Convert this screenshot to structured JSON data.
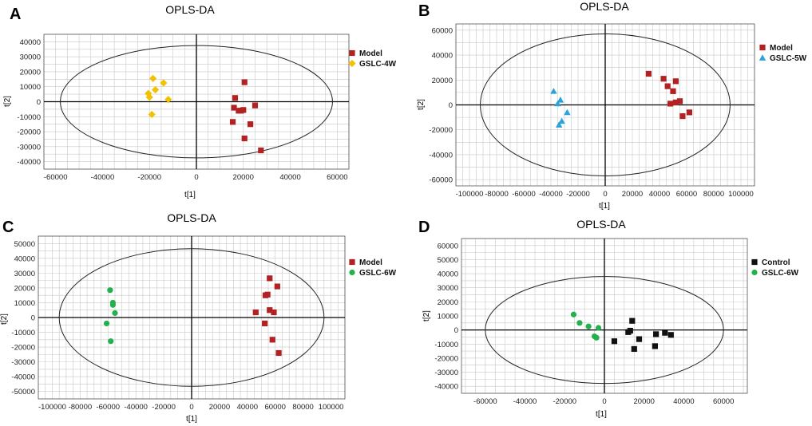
{
  "figure_labels": [
    "A",
    "B",
    "C",
    "D"
  ],
  "chart_data": [
    {
      "type": "scatter",
      "panel_label": "A",
      "title": "OPLS-DA",
      "xlabel": "t[1]",
      "ylabel": "t[2]",
      "xlim": [
        -65000,
        65000
      ],
      "ylim": [
        -45000,
        45000
      ],
      "xticks": [
        -60000,
        -40000,
        -20000,
        0,
        20000,
        40000,
        60000
      ],
      "yticks": [
        -40000,
        -30000,
        -20000,
        -10000,
        0,
        10000,
        20000,
        30000,
        40000
      ],
      "grid": true,
      "ellipse": {
        "rx": 58000,
        "ry": 37500
      },
      "legend_position": "right",
      "series": [
        {
          "name": "Model",
          "marker": "square",
          "color": "#b22222",
          "x": [
            20500,
            16500,
            16000,
            18000,
            20000,
            25000,
            15500,
            23000,
            20500,
            27500,
            19000
          ],
          "y": [
            13000,
            2500,
            -4000,
            -6000,
            -5500,
            -2500,
            -13500,
            -15000,
            -24500,
            -32500,
            -6000
          ]
        },
        {
          "name": "GSLC-4W",
          "marker": "diamond",
          "color": "#f2c200",
          "x": [
            -18500,
            -14000,
            -17500,
            -20000,
            -20500,
            -12000,
            -19000
          ],
          "y": [
            15500,
            12500,
            8000,
            3000,
            5500,
            1500,
            -8500
          ]
        }
      ]
    },
    {
      "type": "scatter",
      "panel_label": "B",
      "title": "OPLS-DA",
      "xlabel": "t[1]",
      "ylabel": "t[2]",
      "xlim": [
        -110000,
        110000
      ],
      "ylim": [
        -65000,
        65000
      ],
      "xticks": [
        -100000,
        -80000,
        -60000,
        -40000,
        -20000,
        0,
        20000,
        40000,
        60000,
        80000,
        100000
      ],
      "yticks": [
        -60000,
        -40000,
        -20000,
        0,
        20000,
        40000,
        60000
      ],
      "grid": true,
      "ellipse": {
        "rx": 92000,
        "ry": 57000
      },
      "legend_position": "right",
      "series": [
        {
          "name": "Model",
          "marker": "square",
          "color": "#b22222",
          "x": [
            32000,
            43000,
            46000,
            52000,
            50000,
            48000,
            52000,
            55000,
            57000,
            62000
          ],
          "y": [
            25000,
            21000,
            15000,
            19000,
            11000,
            1000,
            2000,
            3000,
            -9000,
            -6000
          ]
        },
        {
          "name": "GSLC-5W",
          "marker": "triangle",
          "color": "#29a3d9",
          "x": [
            -38000,
            -33000,
            -35000,
            -28000,
            -32000,
            -34000
          ],
          "y": [
            11000,
            4000,
            1000,
            -6000,
            -13000,
            -16000
          ]
        }
      ]
    },
    {
      "type": "scatter",
      "panel_label": "C",
      "title": "OPLS-DA",
      "xlabel": "t[1]",
      "ylabel": "t[2]",
      "xlim": [
        -110000,
        110000
      ],
      "ylim": [
        -55000,
        55000
      ],
      "xticks": [
        -100000,
        -80000,
        -60000,
        -40000,
        -20000,
        0,
        20000,
        40000,
        60000,
        80000,
        100000
      ],
      "yticks": [
        -50000,
        -40000,
        -30000,
        -20000,
        -10000,
        0,
        10000,
        20000,
        30000,
        40000,
        50000
      ],
      "grid": true,
      "ellipse": {
        "rx": 95000,
        "ry": 46500
      },
      "legend_position": "right",
      "series": [
        {
          "name": "Model",
          "marker": "square",
          "color": "#b22222",
          "x": [
            56000,
            61500,
            53000,
            54500,
            56000,
            59000,
            46000,
            52500,
            58000,
            62500
          ],
          "y": [
            26500,
            21000,
            15000,
            15500,
            5000,
            3500,
            3500,
            -4000,
            -15000,
            -24000
          ]
        },
        {
          "name": "GSLC-6W",
          "marker": "circle",
          "color": "#22b14c",
          "x": [
            -58500,
            -56500,
            -56500,
            -55000,
            -61000,
            -58000
          ],
          "y": [
            18500,
            10000,
            8500,
            3000,
            -4000,
            -16000
          ]
        }
      ]
    },
    {
      "type": "scatter",
      "panel_label": "D",
      "title": "OPLS-DA",
      "xlabel": "t[1]",
      "ylabel": "t[2]",
      "xlim": [
        -72000,
        72000
      ],
      "ylim": [
        -45000,
        65000
      ],
      "xticks": [
        -60000,
        -40000,
        -20000,
        0,
        20000,
        40000,
        60000
      ],
      "yticks": [
        -40000,
        -30000,
        -20000,
        -10000,
        0,
        10000,
        20000,
        30000,
        40000,
        50000,
        60000
      ],
      "grid": true,
      "ellipse": {
        "rx": 60000,
        "ry": 38000
      },
      "legend_position": "right",
      "series": [
        {
          "name": "Control",
          "marker": "square",
          "color": "#111111",
          "x": [
            14000,
            13000,
            12000,
            17500,
            5000,
            26000,
            30500,
            33500,
            25500,
            15000
          ],
          "y": [
            6500,
            -500,
            -1500,
            -6500,
            -8000,
            -3000,
            -2000,
            -3500,
            -11500,
            -13500
          ]
        },
        {
          "name": "GSLC-6W",
          "marker": "circle",
          "color": "#22b14c",
          "x": [
            -15500,
            -12500,
            -8000,
            -3000,
            -5000,
            -4000
          ],
          "y": [
            11000,
            5000,
            2500,
            1500,
            -4500,
            -5500
          ]
        }
      ]
    }
  ]
}
